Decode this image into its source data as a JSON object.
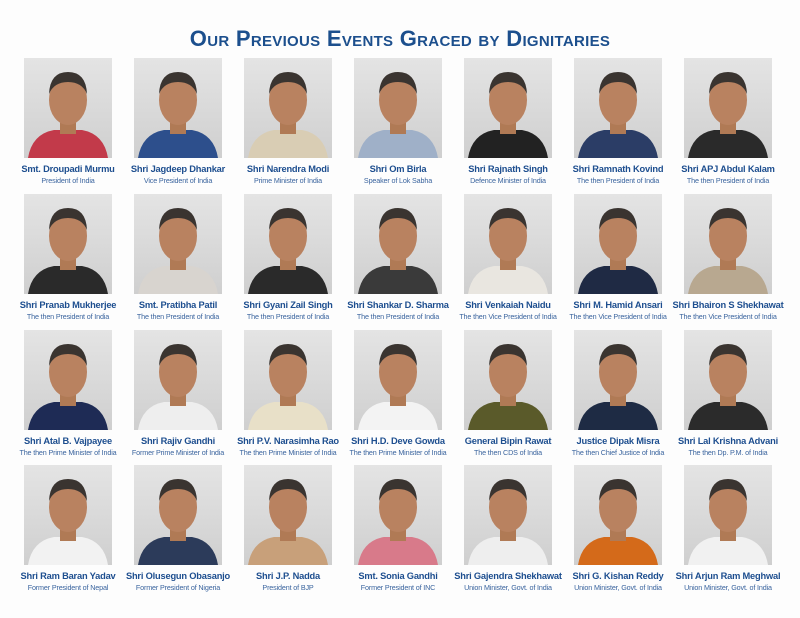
{
  "title": "Our Previous Events Graced by Dignitaries",
  "dignitaries": [
    {
      "name": "Smt. Droupadi Murmu",
      "role": "President of India"
    },
    {
      "name": "Shri Jagdeep Dhankar",
      "role": "Vice President of India"
    },
    {
      "name": "Shri Narendra Modi",
      "role": "Prime Minister of India"
    },
    {
      "name": "Shri Om Birla",
      "role": "Speaker of Lok Sabha"
    },
    {
      "name": "Shri Rajnath Singh",
      "role": "Defence Minister of India"
    },
    {
      "name": "Shri Ramnath Kovind",
      "role": "The then President of India"
    },
    {
      "name": "Shri APJ Abdul Kalam",
      "role": "The then President of India"
    },
    {
      "name": "Shri Pranab Mukherjee",
      "role": "The then President of India"
    },
    {
      "name": "Smt. Pratibha Patil",
      "role": "The then President of India"
    },
    {
      "name": "Shri Gyani Zail Singh",
      "role": "The then President of India"
    },
    {
      "name": "Shri Shankar D. Sharma",
      "role": "The then President of India"
    },
    {
      "name": "Shri Venkaiah Naidu",
      "role": "The then Vice President of India"
    },
    {
      "name": "Shri M. Hamid Ansari",
      "role": "The then Vice President of India"
    },
    {
      "name": "Shri Bhairon S Shekhawat",
      "role": "The then Vice President of India"
    },
    {
      "name": "Shri Atal B. Vajpayee",
      "role": "The then Prime Minister of India"
    },
    {
      "name": "Shri Rajiv Gandhi",
      "role": "Former Prime Minister of India"
    },
    {
      "name": "Shri P.V. Narasimha Rao",
      "role": "The then Prime Minister of India"
    },
    {
      "name": "Shri H.D. Deve Gowda",
      "role": "The then Prime Minister of India"
    },
    {
      "name": "General Bipin Rawat",
      "role": "The then CDS of India"
    },
    {
      "name": "Justice Dipak Misra",
      "role": "The then Chief Justice of India"
    },
    {
      "name": "Shri Lal Krishna Advani",
      "role": "The then Dp. P.M. of India"
    },
    {
      "name": "Shri Ram Baran Yadav",
      "role": "Former President of Nepal"
    },
    {
      "name": "Shri Olusegun Obasanjo",
      "role": "Former President of Nigeria"
    },
    {
      "name": "Shri J.P. Nadda",
      "role": "President of BJP"
    },
    {
      "name": "Smt. Sonia Gandhi",
      "role": "Former President of INC"
    },
    {
      "name": "Shri Gajendra Shekhawat",
      "role": "Union Minister, Govt. of India"
    },
    {
      "name": "Shri G. Kishan Reddy",
      "role": "Union Minister, Govt. of India"
    },
    {
      "name": "Shri Arjun Ram Meghwal",
      "role": "Union Minister, Govt. of India"
    }
  ]
}
